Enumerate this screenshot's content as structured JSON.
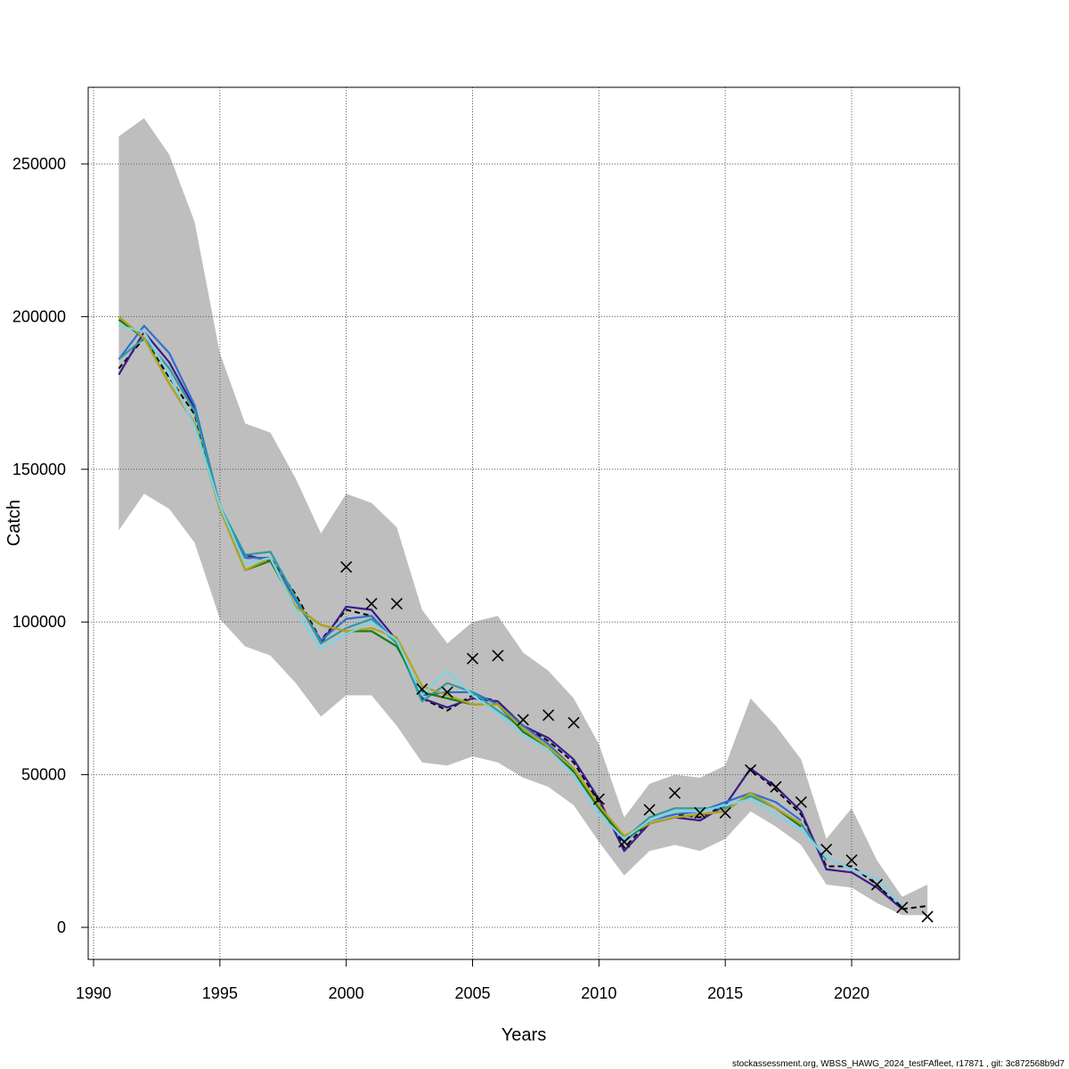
{
  "chart_data": {
    "type": "line",
    "title": "",
    "xlabel": "Years",
    "ylabel": "Catch",
    "xlim": [
      1990,
      2024
    ],
    "ylim": [
      0,
      270000
    ],
    "x_ticks": [
      1990,
      1995,
      2000,
      2005,
      2010,
      2015,
      2020
    ],
    "y_ticks": [
      0,
      50000,
      100000,
      150000,
      200000,
      250000
    ],
    "grid": true,
    "years": [
      1991,
      1992,
      1993,
      1994,
      1995,
      1996,
      1997,
      1998,
      1999,
      2000,
      2001,
      2002,
      2003,
      2004,
      2005,
      2006,
      2007,
      2008,
      2009,
      2010,
      2011,
      2012,
      2013,
      2014,
      2015,
      2016,
      2017,
      2018,
      2019,
      2020,
      2021,
      2022,
      2023
    ],
    "confidence_band": {
      "color": "#bebebe",
      "lower": [
        130000,
        142000,
        137000,
        126000,
        101000,
        92000,
        89000,
        80000,
        69000,
        76000,
        76000,
        66000,
        54000,
        53000,
        56000,
        54000,
        49000,
        46000,
        40000,
        28000,
        17000,
        25000,
        27000,
        25000,
        29000,
        38000,
        33000,
        27000,
        14000,
        13000,
        8000,
        4000,
        4000
      ],
      "upper": [
        259000,
        265000,
        253000,
        231000,
        188000,
        165000,
        162000,
        147000,
        129000,
        142000,
        139000,
        131000,
        104000,
        93000,
        100000,
        102000,
        90000,
        84000,
        75000,
        60000,
        36000,
        47000,
        50000,
        49000,
        53000,
        75000,
        66000,
        55000,
        29000,
        39000,
        22000,
        10000,
        14000
      ]
    },
    "series": [
      {
        "color": "#000000",
        "dashed": true,
        "values": [
          183000,
          193000,
          180000,
          168000,
          138000,
          121000,
          121000,
          109000,
          94000,
          104000,
          102000,
          93000,
          75000,
          71000,
          76000,
          74000,
          66000,
          61000,
          54000,
          41000,
          26000,
          35000,
          37000,
          36000,
          40000,
          52000,
          45000,
          37000,
          20000,
          20000,
          14000,
          6000,
          7000
        ]
      },
      {
        "color": "#3b1a8c",
        "dashed": false,
        "values": [
          181000,
          195000,
          185000,
          170000,
          137000,
          122000,
          120000,
          108000,
          93000,
          105000,
          104000,
          94000,
          75000,
          72000,
          75000,
          74000,
          66000,
          62000,
          55000,
          42000,
          25000,
          34000,
          36000,
          35000,
          40000,
          52000,
          46000,
          38000,
          19000,
          18000,
          13000,
          6000,
          null
        ]
      },
      {
        "color": "#2e6fd0",
        "dashed": false,
        "values": [
          186000,
          197000,
          188000,
          171000,
          138000,
          121000,
          121000,
          107000,
          94000,
          101000,
          102000,
          93000,
          76000,
          77000,
          77000,
          73000,
          66000,
          60000,
          52000,
          40000,
          28000,
          35000,
          37000,
          38000,
          41000,
          44000,
          41000,
          35000,
          null,
          null,
          null,
          null,
          null
        ]
      },
      {
        "color": "#2a9da0",
        "dashed": false,
        "values": [
          186000,
          193000,
          183000,
          169000,
          138000,
          122000,
          123000,
          108000,
          93000,
          98000,
          101000,
          93000,
          74000,
          80000,
          77000,
          71000,
          65000,
          59000,
          51000,
          39000,
          29000,
          36000,
          39000,
          39000,
          39000,
          43000,
          39000,
          34000,
          22000,
          null,
          null,
          null,
          null
        ]
      },
      {
        "color": "#1a7a1a",
        "dashed": false,
        "values": [
          199000,
          193000,
          178000,
          165000,
          137000,
          117000,
          120000,
          105000,
          99000,
          97000,
          97000,
          92000,
          77000,
          75000,
          73000,
          73000,
          64000,
          59000,
          51000,
          39000,
          29000,
          34000,
          36000,
          37000,
          38000,
          44000,
          39000,
          33000,
          null,
          null,
          null,
          null,
          null
        ]
      },
      {
        "color": "#b5a319",
        "dashed": false,
        "values": [
          200000,
          193000,
          178000,
          165000,
          137000,
          117000,
          121000,
          105000,
          99000,
          97000,
          98000,
          95000,
          79000,
          76000,
          73000,
          73000,
          65000,
          59000,
          52000,
          40000,
          30000,
          34000,
          36000,
          37000,
          38000,
          44000,
          39000,
          34000,
          null,
          null,
          null,
          null,
          null
        ]
      },
      {
        "color": "#7ad3e8",
        "dashed": false,
        "values": [
          197000,
          195000,
          181000,
          164000,
          138000,
          119000,
          121000,
          104000,
          91000,
          96000,
          100000,
          94000,
          76000,
          84000,
          76000,
          70000,
          63000,
          58000,
          50000,
          37000,
          29000,
          35000,
          38000,
          38000,
          40000,
          42000,
          37000,
          32000,
          23000,
          19000,
          16000,
          7000,
          null
        ]
      }
    ],
    "observed": {
      "marker": "×",
      "points": [
        {
          "x": 2000,
          "y": 118000
        },
        {
          "x": 2001,
          "y": 106000
        },
        {
          "x": 2002,
          "y": 106000
        },
        {
          "x": 2003,
          "y": 78000
        },
        {
          "x": 2004,
          "y": 77000
        },
        {
          "x": 2005,
          "y": 88000
        },
        {
          "x": 2006,
          "y": 89000
        },
        {
          "x": 2007,
          "y": 68000
        },
        {
          "x": 2008,
          "y": 69500
        },
        {
          "x": 2009,
          "y": 67000
        },
        {
          "x": 2010,
          "y": 42000
        },
        {
          "x": 2011,
          "y": 28000
        },
        {
          "x": 2012,
          "y": 38500
        },
        {
          "x": 2013,
          "y": 44000
        },
        {
          "x": 2014,
          "y": 37500
        },
        {
          "x": 2015,
          "y": 37500
        },
        {
          "x": 2016,
          "y": 51500
        },
        {
          "x": 2017,
          "y": 46000
        },
        {
          "x": 2018,
          "y": 41000
        },
        {
          "x": 2019,
          "y": 25500
        },
        {
          "x": 2020,
          "y": 22000
        },
        {
          "x": 2021,
          "y": 14000
        },
        {
          "x": 2022,
          "y": 6500
        },
        {
          "x": 2023,
          "y": 3500
        }
      ]
    }
  },
  "footer": "stockassessment.org, WBSS_HAWG_2024_testFAfleet, r17871 , git: 3c872568b9d7"
}
